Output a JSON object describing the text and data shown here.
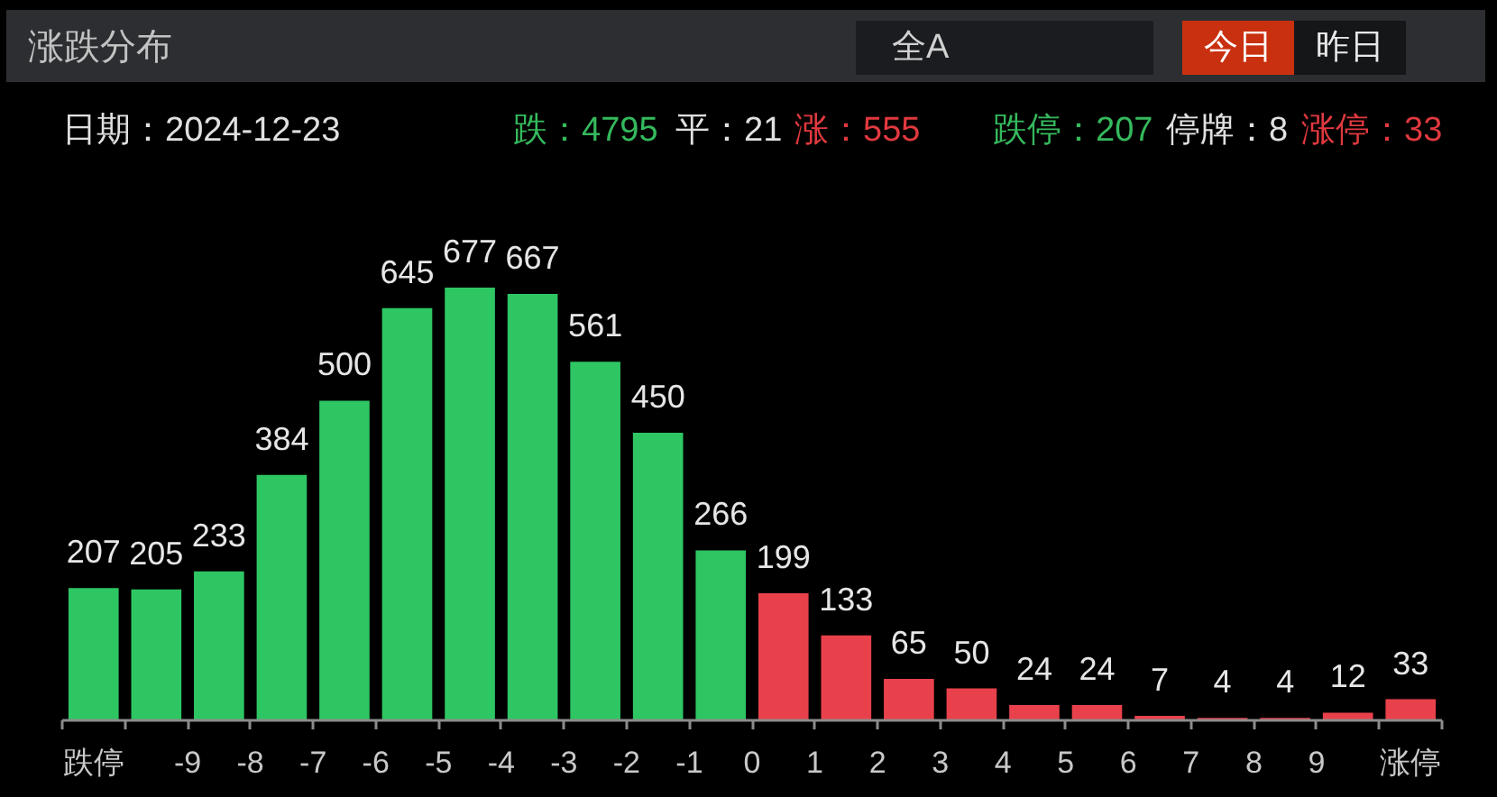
{
  "chart_data": {
    "type": "bar",
    "title": "涨跌分布",
    "x": [
      -10.5,
      -9.5,
      -8.5,
      -7.5,
      -6.5,
      -5.5,
      -4.5,
      -3.5,
      -2.5,
      -1.5,
      -0.5,
      0.5,
      1.5,
      2.5,
      3.5,
      4.5,
      5.5,
      6.5,
      7.5,
      8.5,
      9.5,
      10.5
    ],
    "values": [
      207,
      205,
      233,
      384,
      500,
      645,
      677,
      667,
      561,
      450,
      266,
      199,
      133,
      65,
      50,
      24,
      24,
      7,
      4,
      4,
      12,
      33
    ],
    "colors": [
      "#2ec663",
      "#2ec663",
      "#2ec663",
      "#2ec663",
      "#2ec663",
      "#2ec663",
      "#2ec663",
      "#2ec663",
      "#2ec663",
      "#2ec663",
      "#2ec663",
      "#e9414b",
      "#e9414b",
      "#e9414b",
      "#e9414b",
      "#e9414b",
      "#e9414b",
      "#e9414b",
      "#e9414b",
      "#e9414b",
      "#e9414b",
      "#e9414b"
    ],
    "xlim": [
      -11,
      11
    ],
    "xticks": [
      {
        "value": -10.5,
        "label": "跌停"
      },
      -9,
      -8,
      -7,
      -6,
      -5,
      -4,
      -3,
      -2,
      -1,
      0,
      1,
      2,
      3,
      4,
      5,
      6,
      7,
      8,
      9,
      {
        "value": 10.5,
        "label": "涨停"
      }
    ],
    "data_labels": true,
    "annotations": [
      "全A",
      "今日",
      "昨日",
      "日期：2024-12-23",
      "跌：4795",
      "平：21",
      "涨：555",
      "跌停：207",
      "停牌：8",
      "涨停：33"
    ]
  }
}
